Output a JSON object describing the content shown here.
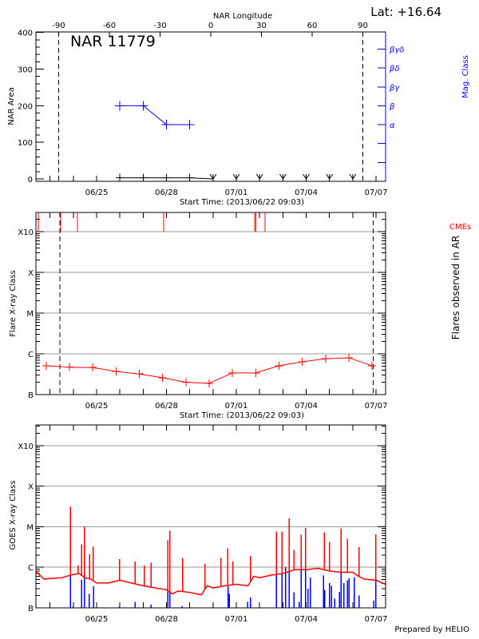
{
  "colors": {
    "axis": "#000000",
    "magclass": "#0000ff",
    "flare": "#ff0000",
    "cme": "#ff0000",
    "goes_long": "#ff0000",
    "goes_events": "#0000ff",
    "grid": "#999999"
  },
  "header": {
    "lat_label": "Lat: +16.64"
  },
  "footer": {
    "prepared_by": "Prepared by HELIO"
  },
  "chart_data": [
    {
      "type": "line",
      "title": "NAR 11779",
      "xlabel": "Start Time: (2013/06/22 09:03)",
      "ylabel": "NAR Area",
      "y2label": "Mag. Class",
      "x2label": "NAR Longitude",
      "xlim": [
        "06/22 09:03",
        "07/07 09:50"
      ],
      "ylim": [
        0,
        408
      ],
      "x_ticklabels": [
        "06/25",
        "06/28",
        "07/01",
        "07/04",
        "07/07"
      ],
      "y_ticklabels": [
        "0",
        "100",
        "200",
        "300",
        "400"
      ],
      "x2_ticklabels": [
        "-90",
        "-60",
        "-30",
        "0",
        "30",
        "60",
        "90"
      ],
      "y2_ticklabels": [
        "",
        "",
        "α",
        "β",
        "βγ",
        "βδ",
        "βγδ"
      ],
      "limb_longitudes": [
        -90,
        90
      ],
      "grid": false,
      "series": [
        {
          "name": "NAR Area",
          "marker": "plus",
          "x": [
            "06/26 00:00",
            "06/27 00:00",
            "06/28 00:00",
            "06/29 00:00"
          ],
          "y": [
            3,
            3,
            3,
            3
          ]
        },
        {
          "name": "NAR Area (not visible)",
          "marker": "arrow",
          "x": [
            "06/30 00:00",
            "07/01 00:00",
            "07/02 00:00",
            "07/03 00:00",
            "07/04 00:00",
            "07/05 00:00",
            "07/06 00:00"
          ],
          "y": [
            0,
            0,
            0,
            0,
            0,
            0,
            0
          ]
        },
        {
          "name": "Mag. Class",
          "marker": "plus",
          "x": [
            "06/26 00:00",
            "06/27 00:00",
            "06/28 00:00",
            "06/29 00:00"
          ],
          "y": [
            "β",
            "β",
            "α",
            "α"
          ]
        }
      ]
    },
    {
      "type": "line",
      "xlabel": "Start Time: (2013/06/22 09:03)",
      "ylabel": "Flare X-ray Class",
      "y2label": "Flares observed in AR",
      "cme_label": "CMEs",
      "xlim": [
        "06/22 09:03",
        "07/07 09:50"
      ],
      "ylim_flux": [
        1e-07,
        0.003
      ],
      "y_scale": "log",
      "x_ticklabels": [
        "06/25",
        "06/28",
        "07/01",
        "07/04",
        "07/07"
      ],
      "y_ticklabels": [
        "B",
        "C",
        "M",
        "X",
        "X10"
      ],
      "limb_dates": [
        "06/23 10:00",
        "07/06 21:00"
      ],
      "grid": true,
      "series": [
        {
          "name": "Flares observed in AR",
          "marker": "plus",
          "x": [
            "06/22 20:00",
            "06/23 20:00",
            "06/24 20:00",
            "06/25 20:00",
            "06/26 20:00",
            "06/27 20:00",
            "06/28 20:00",
            "06/29 20:00",
            "06/30 20:00",
            "07/01 20:00",
            "07/02 20:00",
            "07/03 20:00",
            "07/04 20:00",
            "07/05 20:00",
            "07/06 20:00"
          ],
          "y": [
            5.1e-07,
            4.7e-07,
            4.6e-07,
            3.7e-07,
            3.2e-07,
            2.6e-07,
            2e-07,
            1.9e-07,
            3.4e-07,
            3.4e-07,
            5.1e-07,
            6.4e-07,
            7.6e-07,
            8e-07,
            5.1e-07
          ]
        }
      ],
      "cmes": [
        "06/22 12:00",
        "06/23 11:00",
        "06/24 04:20",
        "06/27 21:00",
        "07/01 19:00",
        "07/01 20:20",
        "07/02 05:30"
      ]
    },
    {
      "type": "line",
      "ylabel": "GOES X-ray Class",
      "xlim": [
        "06/22 09:03",
        "07/07 09:50"
      ],
      "ylim_flux": [
        1e-07,
        0.003
      ],
      "y_scale": "log",
      "x_ticklabels": [
        "06/25",
        "06/28",
        "07/01",
        "07/04",
        "07/07"
      ],
      "y_ticklabels": [
        "B",
        "C",
        "M",
        "X",
        "X10"
      ],
      "grid": true,
      "background": {
        "x": [
          "06/22 09:03",
          "06/22 18:00",
          "06/23 00:00",
          "06/23 12:00",
          "06/23 21:00",
          "06/24 06:00",
          "06/24 12:00",
          "06/24 18:00",
          "06/25 00:00",
          "06/25 12:00",
          "06/26 00:00",
          "06/26 12:00",
          "06/27 00:00",
          "06/27 12:00",
          "06/28 00:00",
          "06/28 06:00",
          "06/28 12:00",
          "06/29 00:00",
          "06/29 12:00",
          "06/29 18:00",
          "06/30 00:00",
          "06/30 12:00",
          "07/01 00:00",
          "07/01 12:00",
          "07/01 18:00",
          "07/02 00:00",
          "07/02 12:00",
          "07/03 00:00",
          "07/03 12:00",
          "07/04 00:00",
          "07/04 12:00",
          "07/05 00:00",
          "07/05 12:00",
          "07/06 00:00",
          "07/06 06:00",
          "07/06 12:00",
          "07/07 00:00",
          "07/07 09:50"
        ],
        "y": [
          8e-07,
          5.1e-07,
          5.3e-07,
          5.5e-07,
          6.4e-07,
          7e-07,
          5.5e-07,
          5.1e-07,
          4.1e-07,
          4.1e-07,
          4.8e-07,
          4.1e-07,
          3.5e-07,
          3.1e-07,
          2.8e-07,
          2.2e-07,
          2.6e-07,
          2.4e-07,
          2.1e-07,
          3.5e-07,
          3.1e-07,
          3.5e-07,
          3.8e-07,
          3.5e-07,
          6e-07,
          5.5e-07,
          6.4e-07,
          7e-07,
          8.7e-07,
          8.7e-07,
          9.4e-07,
          8.1e-07,
          7.5e-07,
          7.5e-07,
          6e-07,
          5.1e-07,
          4.8e-07,
          3.8e-07
        ]
      },
      "peaks": {
        "x": [
          "06/23 21:00",
          "06/24 05:00",
          "06/24 08:30",
          "06/24 11:30",
          "06/24 16:50",
          "06/24 20:40",
          "06/25 23:50",
          "06/26 15:45",
          "06/27 01:20",
          "06/27 08:15",
          "06/28 01:30",
          "06/28 03:25",
          "06/28 16:50",
          "06/29 15:40",
          "06/30 08:05",
          "06/30 15:00",
          "06/30 20:25",
          "07/01 14:30",
          "07/02 17:10",
          "07/02 23:10",
          "07/03 06:20",
          "07/03 11:15",
          "07/03 18:55",
          "07/03 23:20",
          "07/04 18:30",
          "07/05 00:00",
          "07/05 12:05",
          "07/05 18:40",
          "07/06 06:25",
          "07/06 23:45"
        ],
        "y": [
          3.1e-05,
          1.1e-06,
          3.7e-06,
          1e-05,
          2.1e-06,
          3.2e-06,
          1.6e-06,
          1.4e-06,
          1.1e-06,
          1.3e-06,
          4.6e-06,
          7.9e-06,
          1.7e-06,
          1.2e-06,
          1.7e-06,
          2.9e-06,
          1.4e-06,
          1.9e-06,
          7.5e-06,
          7.5e-06,
          1.6e-05,
          2.7e-06,
          6.3e-06,
          9.4e-06,
          7.2e-06,
          4.2e-06,
          9e-06,
          5.1e-06,
          3.1e-06,
          6.5e-06
        ]
      },
      "events": {
        "x": [
          "06/23 21:00",
          "06/23 23:50",
          "06/24 08:30",
          "06/24 11:30",
          "06/24 16:35",
          "06/24 20:45",
          "06/25 23:50",
          "06/26 15:45",
          "06/27 08:15",
          "06/28 01:30",
          "06/28 03:25",
          "06/28 16:20",
          "06/30 15:30",
          "06/30 16:35",
          "07/01 11:45",
          "07/01 14:30",
          "07/02 17:10",
          "07/02 23:10",
          "07/03 02:45",
          "07/03 06:20",
          "07/03 11:15",
          "07/03 16:45",
          "07/03 18:55",
          "07/03 23:20",
          "07/04 01:45",
          "07/04 04:15",
          "07/04 18:00",
          "07/04 19:00",
          "07/05 00:00",
          "07/05 01:55",
          "07/05 05:30",
          "07/05 10:25",
          "07/05 12:05",
          "07/05 14:50",
          "07/05 18:40",
          "07/05 20:20",
          "07/06 01:30",
          "07/06 06:25",
          "07/06 21:30",
          "07/06 23:45"
        ],
        "y": [
          7.3e-06,
          1.1e-07,
          4.9e-07,
          1.4e-06,
          2.2e-07,
          3.4e-07,
          1.1e-07,
          1.4e-07,
          1.2e-07,
          3.2e-07,
          1.1e-06,
          1.1e-07,
          3.4e-07,
          2.2e-07,
          1.4e-07,
          1.8e-07,
          1.4e-06,
          1.5e-06,
          1e-06,
          3.7e-06,
          2.4e-07,
          1.4e-07,
          2e-06,
          1.9e-06,
          3e-07,
          5.6e-07,
          6.2e-07,
          2.8e-07,
          4.1e-07,
          3.5e-07,
          1.7e-07,
          2.5e-07,
          1.1e-06,
          4.1e-07,
          4.8e-07,
          5.3e-07,
          5.6e-07,
          2e-07,
          1.5e-07,
          9.4e-07
        ]
      }
    }
  ]
}
